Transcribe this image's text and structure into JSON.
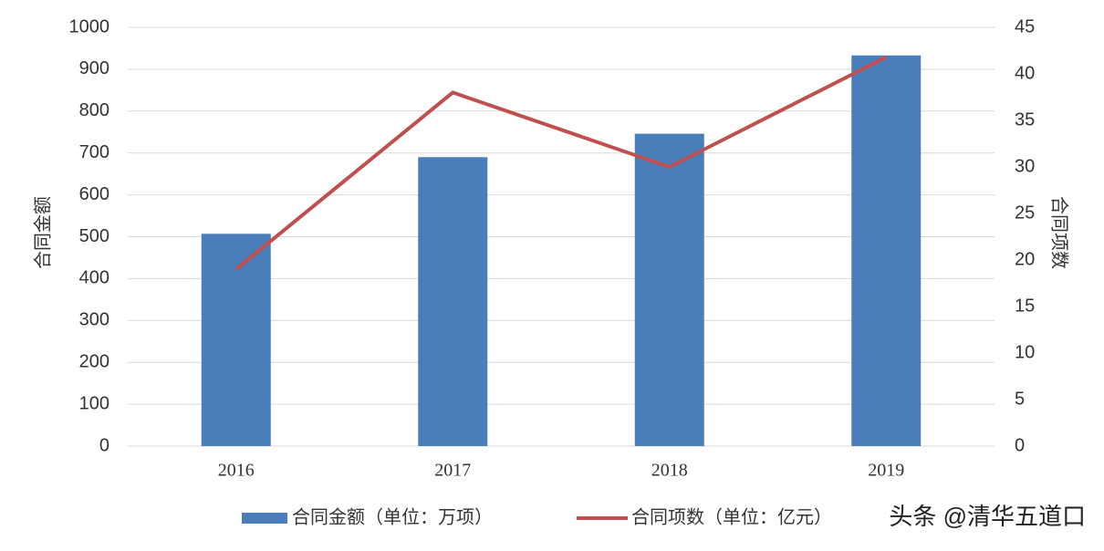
{
  "chart_data": {
    "type": "combo",
    "categories": [
      "2016",
      "2017",
      "2018",
      "2019"
    ],
    "series": [
      {
        "name": "合同金额（单位：万项）",
        "type": "bar",
        "color": "#4a7ebb",
        "values": [
          507,
          690,
          746,
          933
        ]
      },
      {
        "name": "合同项数（单位：亿元）",
        "type": "line",
        "axis": "y2",
        "color": "#c0504d",
        "values": [
          19,
          38,
          30,
          41.8
        ]
      }
    ],
    "y_label": "合同金额",
    "y2_label": "合同项数",
    "ylim": [
      0,
      1000
    ],
    "yticks": [
      0,
      100,
      200,
      300,
      400,
      500,
      600,
      700,
      800,
      900,
      1000
    ],
    "y2lim": [
      0,
      45
    ],
    "y2ticks": [
      0,
      5,
      10,
      15,
      20,
      25,
      30,
      35,
      40,
      45
    ],
    "grid": true,
    "legend": "bottom",
    "watermark": "头条 @清华五道口"
  }
}
